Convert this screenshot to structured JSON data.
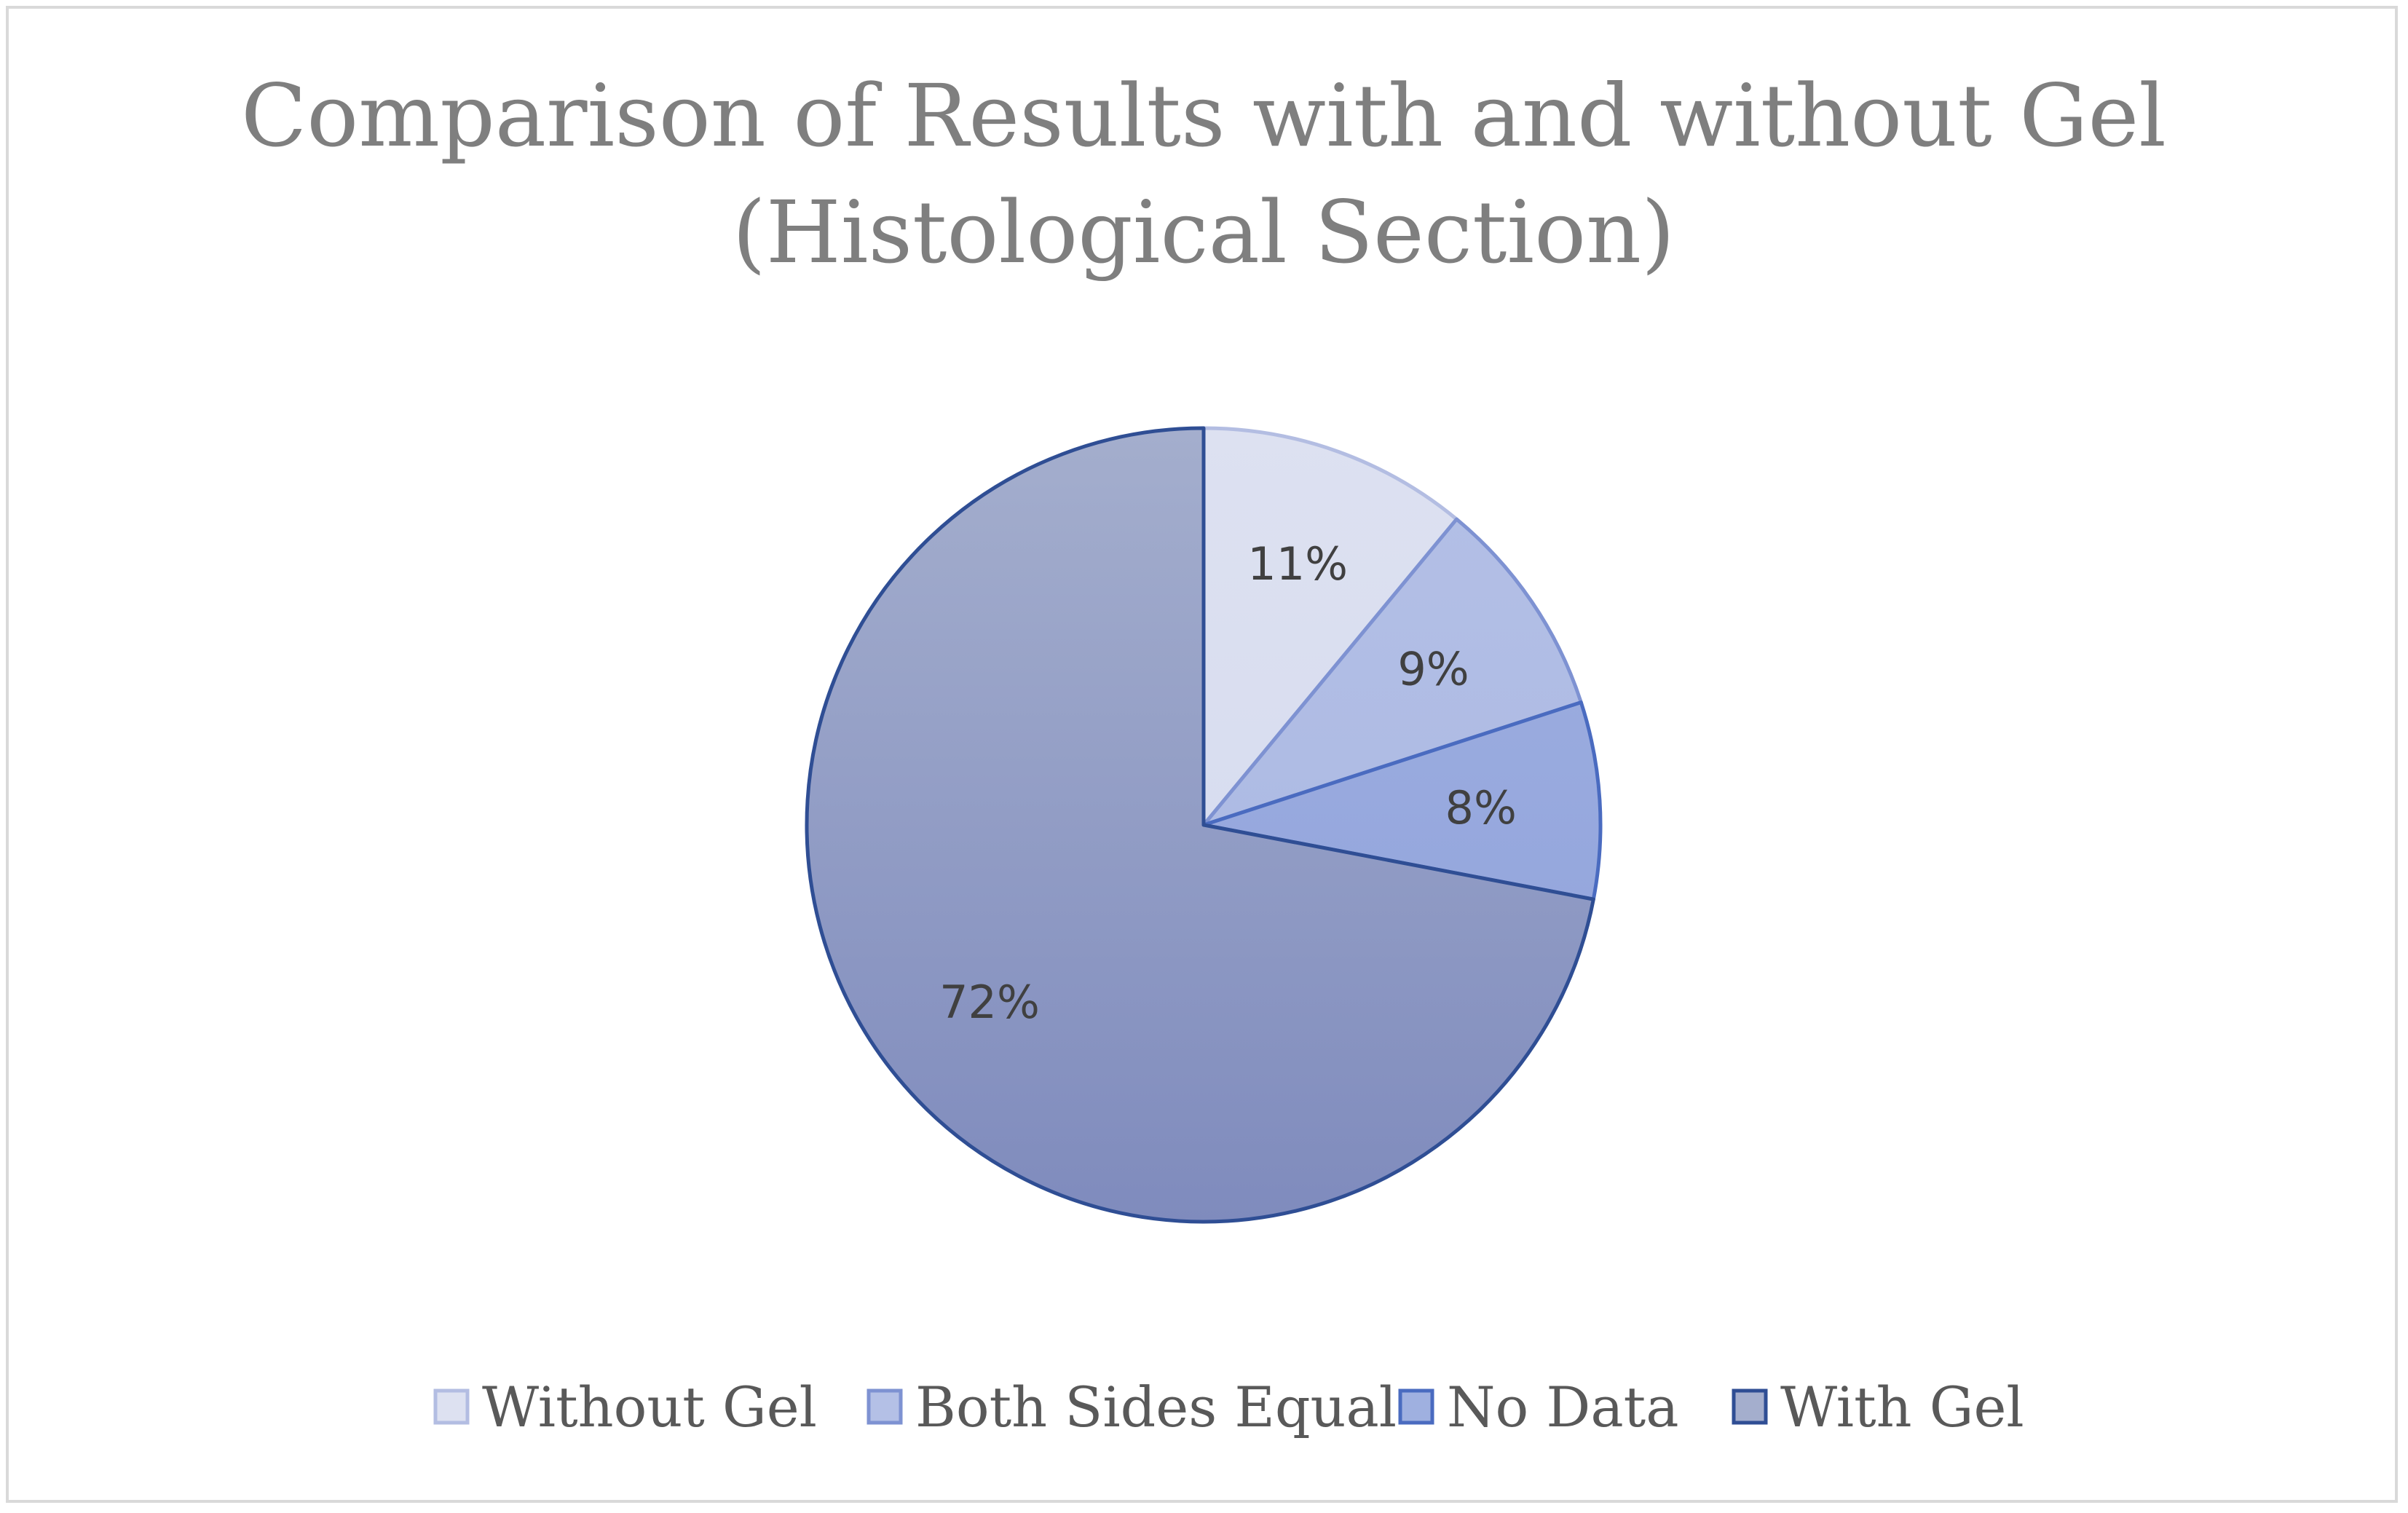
{
  "chart_data": {
    "type": "pie",
    "title_lines": [
      "Comparison of Results with and without Gel",
      "(Histological Section)"
    ],
    "slices": [
      {
        "name": "Without Gel",
        "value": 11,
        "label": "11%",
        "fill_top": "#dde1f1",
        "fill_bottom": "#d3d9ee",
        "stroke": "#b3bde2"
      },
      {
        "name": "Both Sides Equal",
        "value": 9,
        "label": "9%",
        "fill_top": "#b4c0e6",
        "fill_bottom": "#a8b6e2",
        "stroke": "#7e92d2"
      },
      {
        "name": "No Data",
        "value": 8,
        "label": "8%",
        "fill_top": "#9fb0e0",
        "fill_bottom": "#8fa1db",
        "stroke": "#4a6bc0"
      },
      {
        "name": "With Gel",
        "value": 72,
        "label": "72%",
        "fill_top": "#a4aecd",
        "fill_bottom": "#7f8bbd",
        "stroke": "#2f4e94"
      }
    ],
    "start_angle_deg": 0,
    "direction": "clockwise",
    "legend_position": "bottom"
  }
}
